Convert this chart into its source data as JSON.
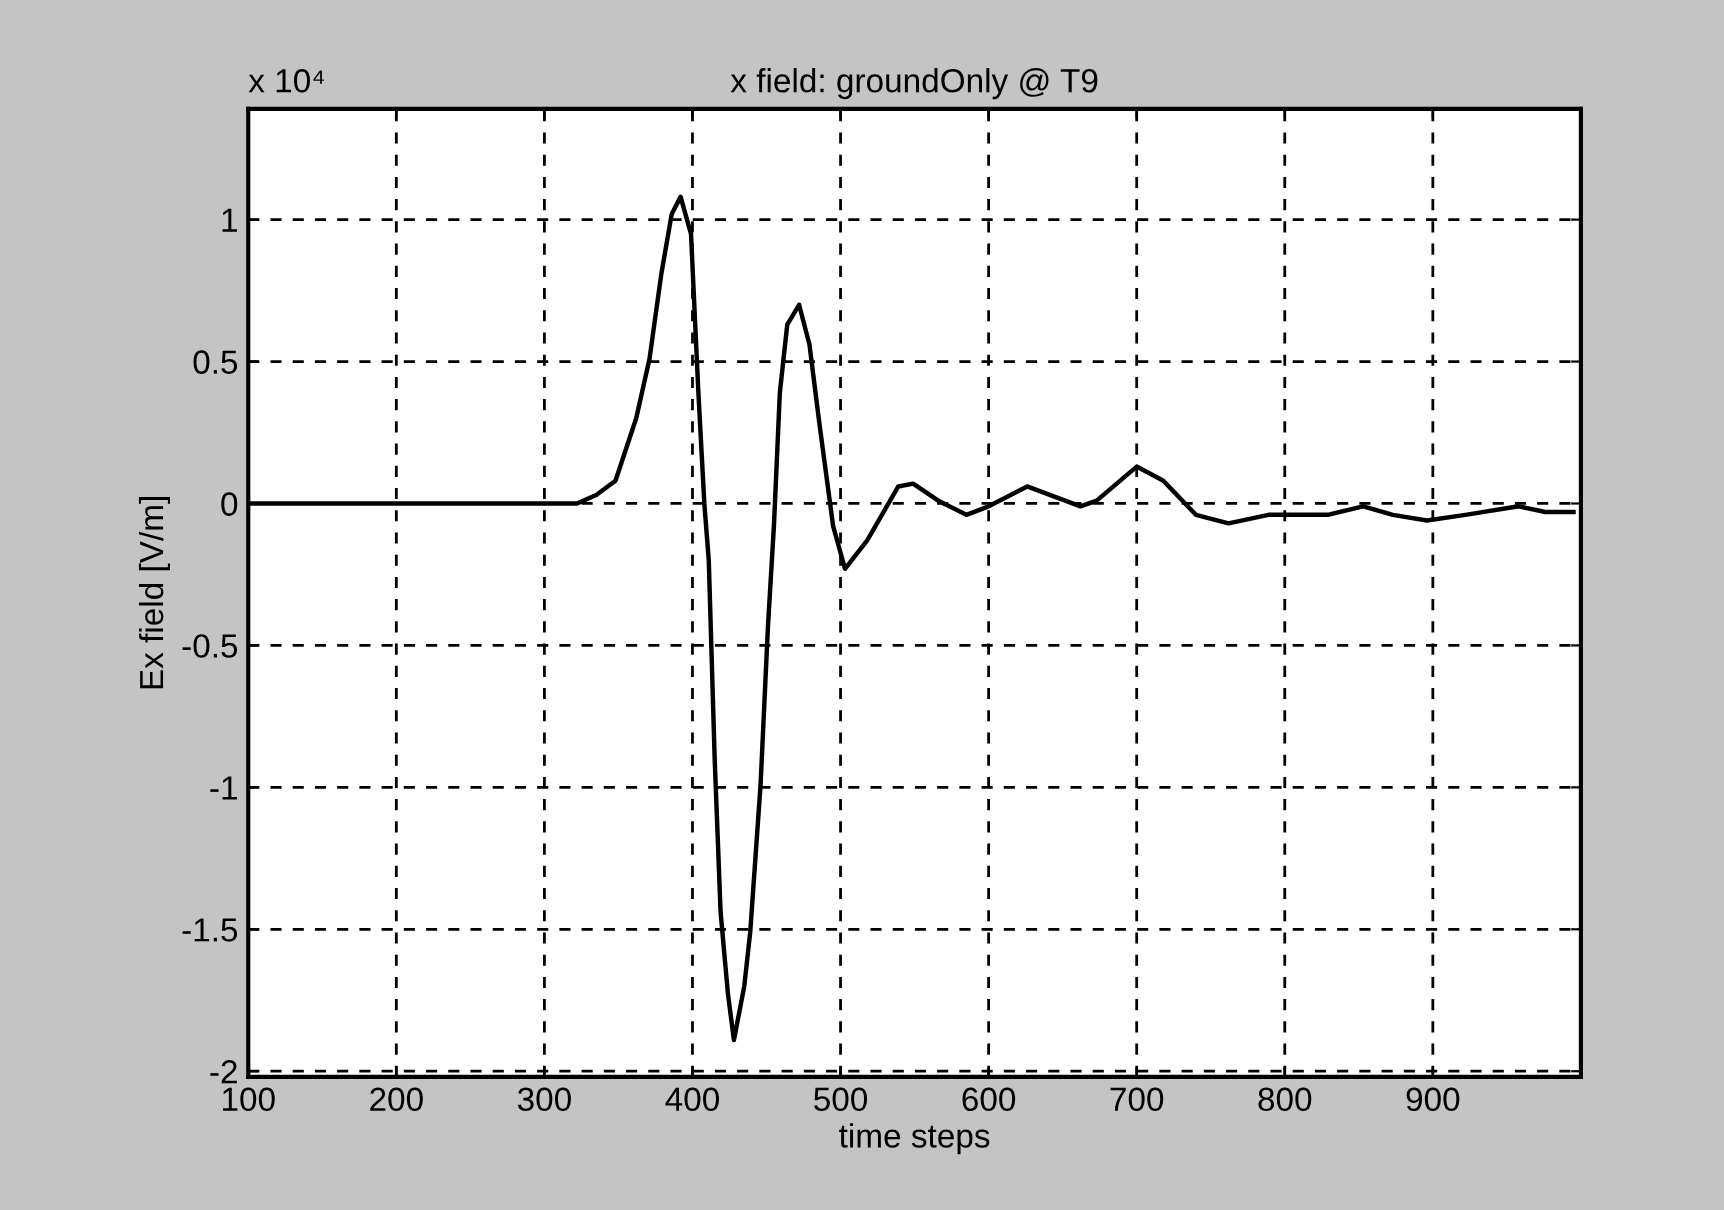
{
  "chart_data": {
    "type": "line",
    "title": "x field: groundOnly @ T9",
    "xlabel": "time steps",
    "ylabel": "Ex field [V/m]",
    "annotations": [
      "x 10⁴"
    ],
    "xlim": [
      100,
      1000
    ],
    "xticks": [
      100,
      200,
      300,
      400,
      500,
      600,
      700,
      800,
      900
    ],
    "ylim": [
      -2.02,
      1.39
    ],
    "yticks": [
      -2,
      -1.5,
      -1,
      -0.5,
      0,
      0.5,
      1
    ],
    "grid": true,
    "line_style": "solid",
    "marker": "none",
    "series": [
      {
        "color": "#000000",
        "x": [
          100,
          322,
          335,
          348,
          362,
          371,
          379,
          386,
          392,
          399,
          404,
          408,
          411,
          415,
          419,
          424,
          428,
          435,
          439,
          446,
          451,
          455,
          459,
          464,
          472,
          479,
          486,
          495,
          503,
          518,
          539,
          549,
          566,
          585,
          600,
          626,
          662,
          673,
          700,
          718,
          740,
          762,
          789,
          829,
          853,
          873,
          896,
          922,
          958,
          976,
          995
        ],
        "values": [
          0,
          0,
          0.03,
          0.08,
          0.3,
          0.51,
          0.81,
          1.02,
          1.08,
          0.95,
          0.39,
          0,
          -0.2,
          -0.9,
          -1.44,
          -1.73,
          -1.89,
          -1.7,
          -1.51,
          -0.99,
          -0.43,
          -0.08,
          0.39,
          0.63,
          0.7,
          0.56,
          0.27,
          -0.08,
          -0.23,
          -0.13,
          0.06,
          0.07,
          0.01,
          -0.04,
          -0.01,
          0.06,
          -0.01,
          0.01,
          0.13,
          0.08,
          -0.04,
          -0.07,
          -0.04,
          -0.04,
          -0.01,
          -0.04,
          -0.06,
          -0.04,
          -0.01,
          -0.03,
          -0.03
        ]
      }
    ]
  }
}
